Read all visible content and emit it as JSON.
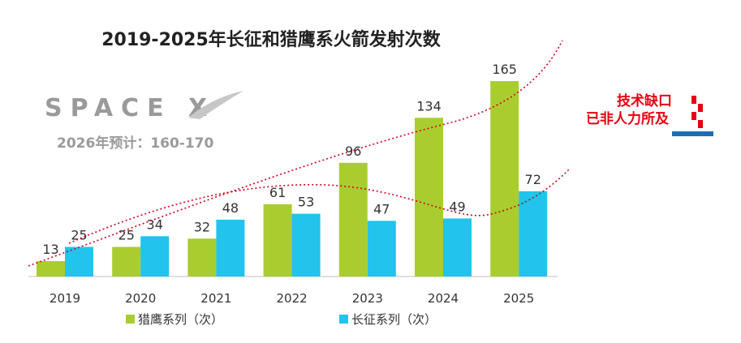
{
  "chart_data": {
    "type": "bar",
    "title": "2019-2025年长征和猎鹰系火箭发射次数",
    "categories": [
      "2019",
      "2020",
      "2021",
      "2022",
      "2023",
      "2024",
      "2025"
    ],
    "series": [
      {
        "name": "猎鹰系列（次）",
        "color": "#a9cd2f",
        "values": [
          13,
          25,
          32,
          61,
          96,
          134,
          165
        ]
      },
      {
        "name": "长征系列（次）",
        "color": "#22c3ec",
        "values": [
          25,
          34,
          48,
          53,
          47,
          49,
          72
        ]
      }
    ],
    "ylim": [
      0,
      170
    ],
    "xlabel": "",
    "ylabel": "",
    "grid": false,
    "legend": "bottom",
    "trendline_color": "#d0021b"
  },
  "logo": {
    "text": "SPACE X",
    "caption": "2026年预计：160-170"
  },
  "note": {
    "line1": "技术缺口",
    "line2": "已非人力所及",
    "color": "#e60012",
    "accent": "#1a6fb4"
  }
}
